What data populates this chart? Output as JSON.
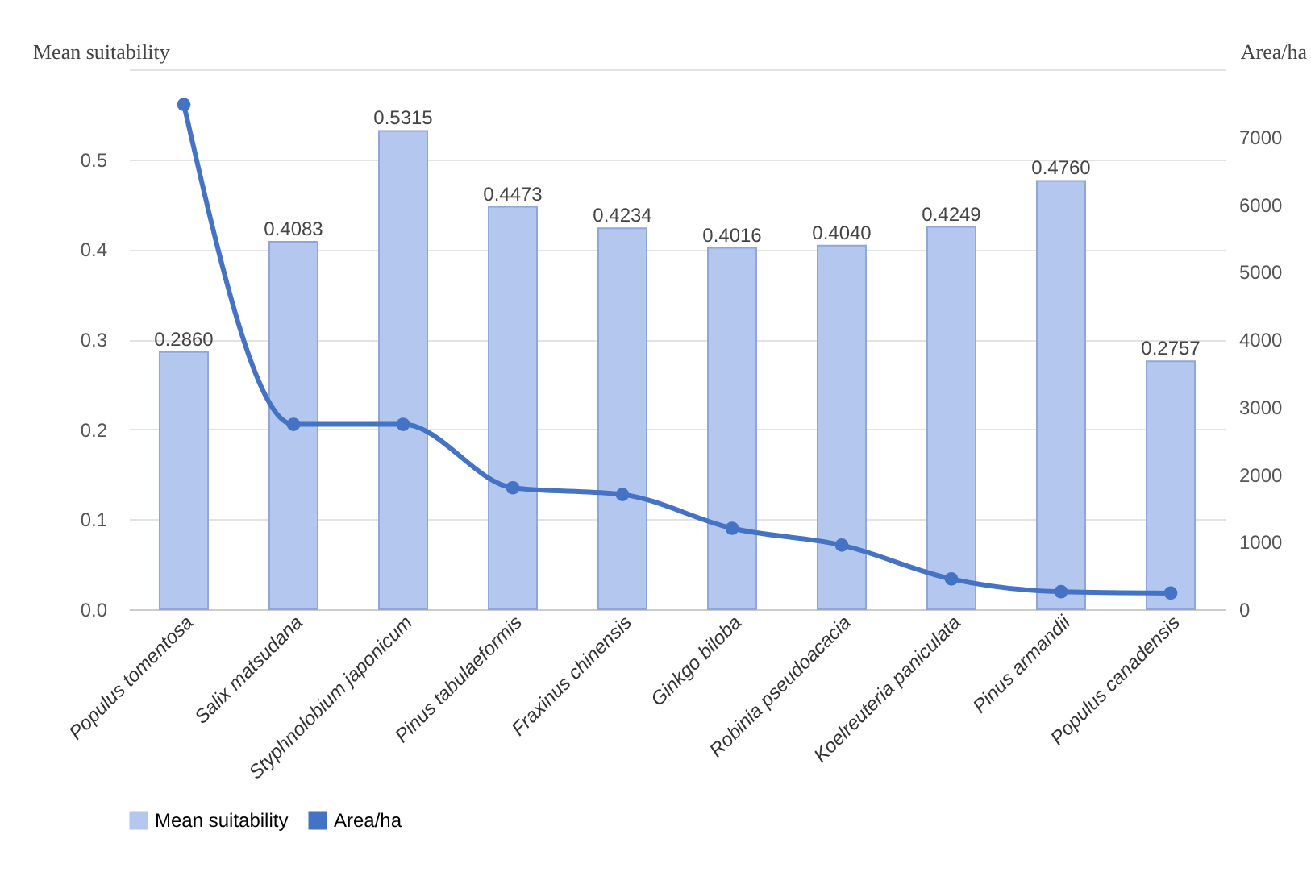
{
  "chart_data": {
    "type": "bar",
    "categories": [
      "Populus tomentosa",
      "Salix matsudana",
      "Styphnolobium japonicum",
      "Pinus tabulaeformis",
      "Fraxinus chinensis",
      "Ginkgo biloba",
      "Robinia pseudoacacia",
      "Koelreuteria paniculata",
      "Pinus armandii",
      "Populus canadensis"
    ],
    "series": [
      {
        "name": "Mean suitability",
        "color": "#b4c7ef",
        "values": [
          0.286,
          0.4083,
          0.5315,
          0.4473,
          0.4234,
          0.4016,
          0.404,
          0.4249,
          0.476,
          0.2757
        ],
        "value_labels": [
          "0.2860",
          "0.4083",
          "0.5315",
          "0.4473",
          "0.4234",
          "0.4016",
          "0.4040",
          "0.4249",
          "0.4760",
          "0.2757"
        ]
      },
      {
        "name": "Area/ha",
        "type": "line",
        "axis": "y2",
        "color": "#4472c4",
        "values": [
          7480,
          2740,
          2740,
          1800,
          1700,
          1200,
          950,
          450,
          260,
          240
        ]
      }
    ],
    "ylabel": "Mean suitability",
    "y2label": "Area/ha",
    "ylim": [
      0,
      0.6
    ],
    "yticks": [
      {
        "value": 0,
        "label": "0.0"
      },
      0.1,
      0.2,
      0.3,
      0.4,
      0.5,
      {
        "value": 0.6,
        "label": null
      }
    ],
    "y2lim": [
      0,
      8000
    ],
    "y2ticks": [
      0,
      1000,
      2000,
      3000,
      4000,
      5000,
      6000,
      7000
    ],
    "grid": "y",
    "legend": "bottom",
    "marker": "circle",
    "line_style": "solid"
  }
}
